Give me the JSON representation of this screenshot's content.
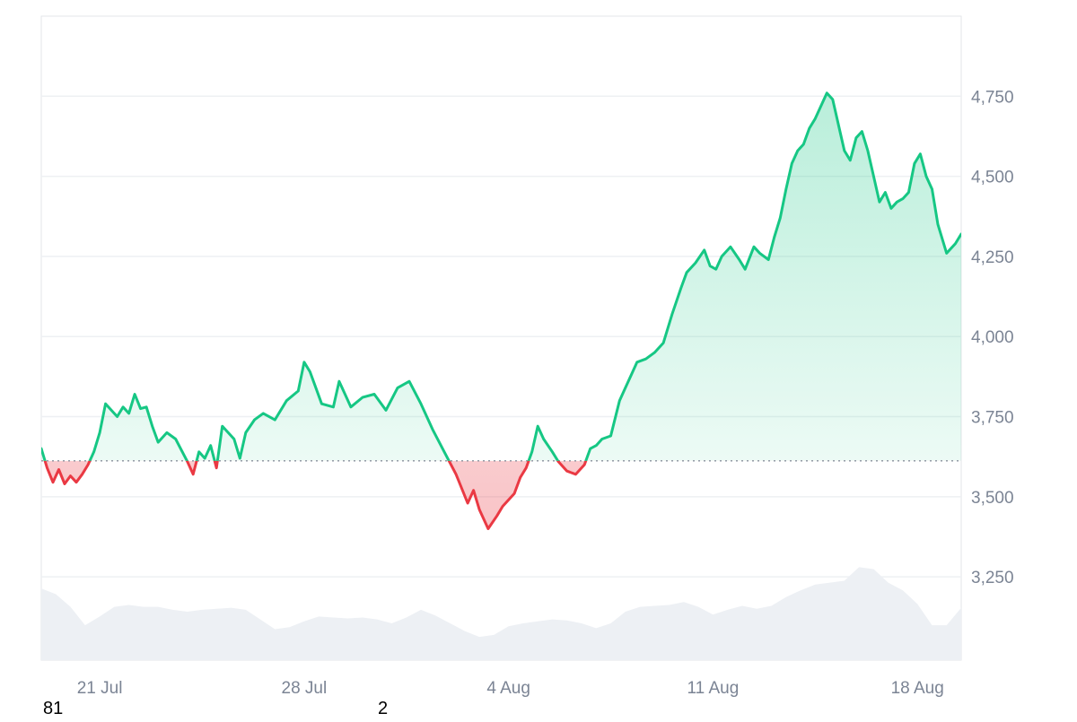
{
  "chart_data": {
    "type": "area",
    "baseline": 3612,
    "ylim": [
      2990,
      5000
    ],
    "xlim": [
      0,
      31.5
    ],
    "y_ticks": [
      {
        "value": 4750,
        "label": "4,750"
      },
      {
        "value": 4500,
        "label": "4,500"
      },
      {
        "value": 4250,
        "label": "4,250"
      },
      {
        "value": 4000,
        "label": "4,000"
      },
      {
        "value": 3750,
        "label": "3,750"
      },
      {
        "value": 3500,
        "label": "3,500"
      },
      {
        "value": 3250,
        "label": "3,250"
      }
    ],
    "x_ticks": [
      {
        "day": 2,
        "label": "21 Jul"
      },
      {
        "day": 9,
        "label": "28 Jul"
      },
      {
        "day": 16,
        "label": "4 Aug"
      },
      {
        "day": 23,
        "label": "11 Aug"
      },
      {
        "day": 30,
        "label": "18 Aug"
      }
    ],
    "price_series": {
      "x": [
        0,
        0.2,
        0.4,
        0.6,
        0.8,
        1.0,
        1.2,
        1.4,
        1.6,
        1.8,
        2.0,
        2.2,
        2.4,
        2.6,
        2.8,
        3.0,
        3.2,
        3.4,
        3.6,
        3.8,
        4.0,
        4.3,
        4.6,
        5.0,
        5.2,
        5.4,
        5.6,
        5.8,
        6.0,
        6.2,
        6.4,
        6.6,
        6.8,
        7.0,
        7.3,
        7.6,
        8.0,
        8.4,
        8.8,
        9.0,
        9.2,
        9.6,
        10.0,
        10.2,
        10.6,
        11.0,
        11.4,
        11.8,
        12.2,
        12.6,
        13.0,
        13.4,
        13.8,
        14.2,
        14.6,
        14.8,
        15.0,
        15.3,
        15.6,
        15.8,
        16.0,
        16.2,
        16.4,
        16.6,
        16.8,
        17.0,
        17.2,
        17.5,
        17.7,
        18.0,
        18.3,
        18.6,
        18.8,
        19.0,
        19.2,
        19.5,
        19.8,
        20.0,
        20.2,
        20.4,
        20.7,
        21.0,
        21.3,
        21.6,
        21.9,
        22.1,
        22.4,
        22.7,
        22.9,
        23.1,
        23.3,
        23.6,
        23.9,
        24.1,
        24.4,
        24.6,
        24.9,
        25.1,
        25.3,
        25.5,
        25.7,
        25.9,
        26.1,
        26.3,
        26.5,
        26.7,
        26.9,
        27.1,
        27.3,
        27.5,
        27.7,
        27.9,
        28.1,
        28.3,
        28.5,
        28.7,
        28.9,
        29.1,
        29.3,
        29.5,
        29.7,
        29.9,
        30.1,
        30.3,
        30.5,
        30.7,
        31.0,
        31.3,
        31.5
      ],
      "y": [
        3650,
        3590,
        3545,
        3585,
        3540,
        3565,
        3545,
        3570,
        3600,
        3640,
        3700,
        3790,
        3770,
        3750,
        3780,
        3760,
        3820,
        3775,
        3780,
        3720,
        3670,
        3700,
        3680,
        3610,
        3570,
        3640,
        3620,
        3660,
        3590,
        3720,
        3700,
        3680,
        3620,
        3700,
        3740,
        3760,
        3740,
        3800,
        3830,
        3920,
        3890,
        3790,
        3780,
        3860,
        3780,
        3810,
        3820,
        3770,
        3840,
        3860,
        3790,
        3710,
        3640,
        3570,
        3480,
        3520,
        3460,
        3400,
        3440,
        3470,
        3490,
        3510,
        3560,
        3590,
        3640,
        3720,
        3680,
        3640,
        3610,
        3580,
        3570,
        3600,
        3650,
        3660,
        3680,
        3690,
        3800,
        3840,
        3880,
        3920,
        3930,
        3950,
        3980,
        4070,
        4150,
        4200,
        4230,
        4270,
        4220,
        4210,
        4250,
        4280,
        4240,
        4210,
        4280,
        4260,
        4240,
        4310,
        4370,
        4460,
        4540,
        4580,
        4600,
        4650,
        4680,
        4720,
        4760,
        4740,
        4660,
        4580,
        4550,
        4620,
        4640,
        4580,
        4500,
        4420,
        4450,
        4400,
        4420,
        4430,
        4450,
        4540,
        4570,
        4500,
        4460,
        4350,
        4260,
        4290,
        4320
      ]
    },
    "volume_series": {
      "x": [
        0,
        0.5,
        1.0,
        1.5,
        2.0,
        2.5,
        3.0,
        3.5,
        4.0,
        4.5,
        5.0,
        5.5,
        6.0,
        6.5,
        7.0,
        7.5,
        8.0,
        8.5,
        9.0,
        9.5,
        10.0,
        10.5,
        11.0,
        11.5,
        12.0,
        12.5,
        13.0,
        13.5,
        14.0,
        14.5,
        15.0,
        15.5,
        16.0,
        16.5,
        17.0,
        17.5,
        18.0,
        18.5,
        19.0,
        19.5,
        20.0,
        20.5,
        21.0,
        21.5,
        22.0,
        22.5,
        23.0,
        23.5,
        24.0,
        24.5,
        25.0,
        25.5,
        26.0,
        26.5,
        27.0,
        27.5,
        28.0,
        28.5,
        29.0,
        29.5,
        30.0,
        30.5,
        31.0,
        31.5
      ],
      "level": [
        0.74,
        0.68,
        0.55,
        0.36,
        0.45,
        0.55,
        0.57,
        0.55,
        0.55,
        0.52,
        0.5,
        0.52,
        0.53,
        0.54,
        0.52,
        0.42,
        0.32,
        0.34,
        0.4,
        0.45,
        0.44,
        0.43,
        0.44,
        0.42,
        0.38,
        0.44,
        0.52,
        0.46,
        0.38,
        0.3,
        0.24,
        0.26,
        0.35,
        0.38,
        0.4,
        0.42,
        0.41,
        0.38,
        0.33,
        0.38,
        0.5,
        0.55,
        0.56,
        0.57,
        0.6,
        0.55,
        0.47,
        0.52,
        0.56,
        0.53,
        0.56,
        0.65,
        0.72,
        0.78,
        0.8,
        0.82,
        0.96,
        0.94,
        0.8,
        0.72,
        0.58,
        0.36,
        0.36,
        0.54
      ]
    }
  },
  "colors": {
    "up": "#16c784",
    "down": "#ea3943",
    "volume": "#edf0f4",
    "grid": "#eef0f3",
    "baseline": "#8a919d"
  },
  "footer": {
    "left_value": "81",
    "right_value": "2"
  }
}
